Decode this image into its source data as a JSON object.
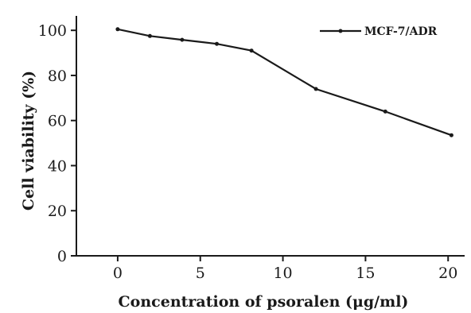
{
  "chart_data": {
    "type": "line",
    "title": "",
    "xlabel": "Concentration of psoralen (μg/ml)",
    "ylabel": "Cell viability (%)",
    "xlim": [
      -2.5,
      21
    ],
    "ylim": [
      0,
      105
    ],
    "xticks": [
      0,
      5,
      10,
      15,
      20
    ],
    "yticks": [
      0,
      20,
      40,
      60,
      80,
      100
    ],
    "grid": false,
    "legend_position": "top-right",
    "series": [
      {
        "name": "MCF-7/ADR",
        "color": "#1a1a1a",
        "x": [
          0,
          1.95,
          3.9,
          6,
          8.1,
          12,
          16.2,
          20.2
        ],
        "y": [
          100.5,
          97.5,
          95.8,
          94,
          91,
          74,
          64,
          53.5
        ]
      }
    ]
  }
}
